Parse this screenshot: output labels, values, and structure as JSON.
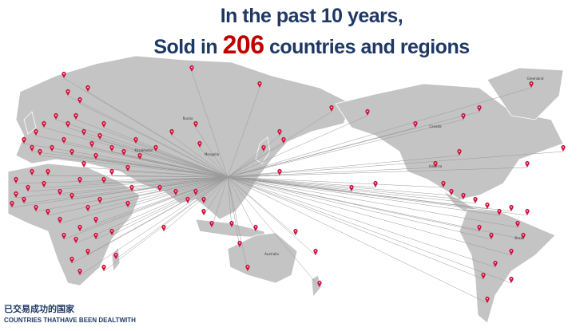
{
  "header": {
    "line1": "In the past 10 years,",
    "line2_before": "Sold in",
    "count": 206,
    "line2_after": "countries and regions"
  },
  "labels": [
    "Russia",
    "Canada",
    "Greenland",
    "America",
    "Brazil",
    "Australia",
    "Mongolia",
    "Kazakhstan"
  ],
  "footer": {
    "chinese": "已交易成功的国家",
    "english": "COUNTRIES THATHAVE BEEN DEALTWITH"
  }
}
